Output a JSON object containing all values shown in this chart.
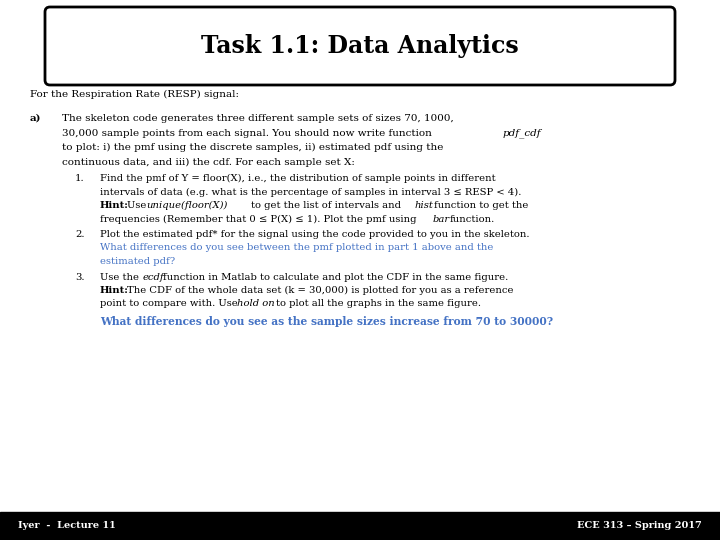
{
  "title": "Task 1.1: Data Analytics",
  "subtitle": "For the Respiration Rate (RESP) signal:",
  "bg_color": "#ffffff",
  "text_color": "#000000",
  "blue_color": "#4472C4",
  "title_fontsize": 17,
  "body_fontsize": 7.5,
  "hint_fontsize": 7.2,
  "footer_fontsize": 7,
  "footer_left": "Iyer  -  Lecture 11",
  "footer_right": "ECE 313 – Spring 2017"
}
